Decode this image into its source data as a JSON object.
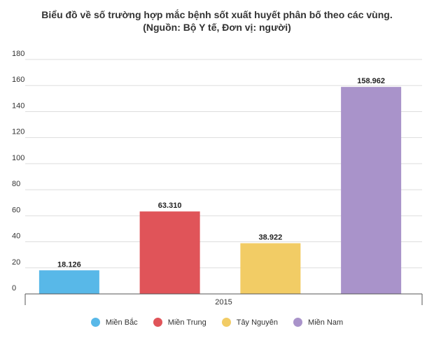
{
  "chart_data": {
    "type": "bar",
    "title": "Biểu đồ về số trường hợp mắc bệnh sốt xuất huyết phân bố theo các vùng.",
    "subtitle": "(Nguồn: Bộ Y tế, Đơn vị: người)",
    "categories": [
      "2015"
    ],
    "series": [
      {
        "name": "Miền Bắc",
        "values": [
          18.126
        ],
        "label": "18.126",
        "color": "#58b8e8"
      },
      {
        "name": "Miền Trung",
        "values": [
          63.31
        ],
        "label": "63.310",
        "color": "#e05459"
      },
      {
        "name": "Tây Nguyên",
        "values": [
          38.922
        ],
        "label": "38.922",
        "color": "#f2cc65"
      },
      {
        "name": "Miền Nam",
        "values": [
          158.962
        ],
        "label": "158.962",
        "color": "#a993ca"
      }
    ],
    "ylim": [
      0,
      180
    ],
    "yticks": [
      0,
      20,
      40,
      60,
      80,
      100,
      120,
      140,
      160,
      180
    ],
    "xlabel": "",
    "ylabel": "",
    "grid": true,
    "legend_position": "bottom"
  }
}
